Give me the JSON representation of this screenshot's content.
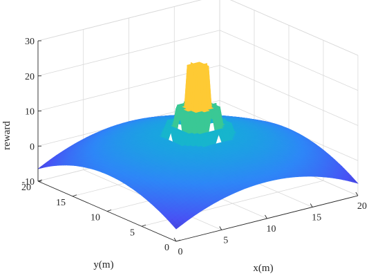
{
  "chart_data": {
    "type": "surface",
    "xlabel": "x(m)",
    "ylabel": "y(m)",
    "zlabel": "reward",
    "xlim": [
      0,
      20
    ],
    "ylim": [
      0,
      20
    ],
    "zlim": [
      -10,
      30
    ],
    "x_ticks": [
      0,
      5,
      10,
      15,
      20
    ],
    "y_ticks": [
      0,
      5,
      10,
      15,
      20
    ],
    "z_ticks": [
      -10,
      0,
      10,
      20,
      30
    ],
    "grid": true,
    "colormap": "parula",
    "surface": {
      "peak_center": [
        10,
        10
      ],
      "peak_value": 25,
      "corner_value": -6.5,
      "edge_midpoint_value": 0.5,
      "center_base_value": 6,
      "terraces": [
        {
          "radius": 3.0,
          "top": 8
        },
        {
          "radius": 2.0,
          "top": 13
        },
        {
          "radius": 1.0,
          "top": 25
        }
      ]
    }
  }
}
